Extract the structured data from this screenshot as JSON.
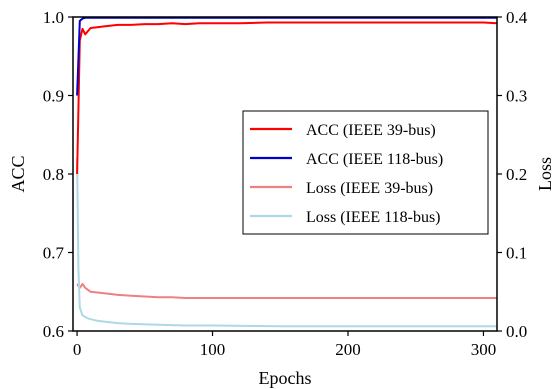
{
  "chart_data": {
    "type": "line",
    "xlabel": "Epochs",
    "ylabel_left": "ACC",
    "ylabel_right": "Loss",
    "xlim": [
      -3,
      310
    ],
    "ylim_left": [
      0.6,
      1.0
    ],
    "ylim_right": [
      0.0,
      0.4
    ],
    "xticks": [
      0,
      100,
      200,
      300
    ],
    "xtick_labels": [
      "0",
      "100",
      "200",
      "300"
    ],
    "yticks_left": [
      0.6,
      0.7,
      0.8,
      0.9,
      1.0
    ],
    "ytick_labels_left": [
      "0.6",
      "0.7",
      "0.8",
      "0.9",
      "1.0"
    ],
    "yticks_right": [
      0.0,
      0.1,
      0.2,
      0.3,
      0.4
    ],
    "ytick_labels_right": [
      "0.0",
      "0.1",
      "0.2",
      "0.3",
      "0.4"
    ],
    "grid": false,
    "legend_position": "center-right",
    "series": [
      {
        "name": "ACC (IEEE 39-bus)",
        "axis": "left",
        "color": "#ff0000",
        "x": [
          0,
          2,
          4,
          6,
          8,
          10,
          15,
          20,
          30,
          40,
          50,
          60,
          70,
          80,
          90,
          100,
          120,
          140,
          160,
          180,
          200,
          220,
          240,
          260,
          280,
          300,
          310
        ],
        "y": [
          0.8,
          0.97,
          0.985,
          0.978,
          0.982,
          0.986,
          0.987,
          0.988,
          0.99,
          0.99,
          0.991,
          0.991,
          0.992,
          0.991,
          0.992,
          0.992,
          0.992,
          0.993,
          0.993,
          0.993,
          0.993,
          0.993,
          0.993,
          0.993,
          0.993,
          0.993,
          0.992
        ]
      },
      {
        "name": "ACC (IEEE 118-bus)",
        "axis": "left",
        "color": "#0000cc",
        "x": [
          0,
          2,
          4,
          6,
          10,
          20,
          50,
          100,
          150,
          200,
          250,
          300,
          310
        ],
        "y": [
          0.9,
          0.995,
          0.998,
          0.999,
          0.999,
          0.999,
          0.999,
          0.999,
          0.999,
          0.999,
          0.999,
          0.999,
          0.999
        ]
      },
      {
        "name": "Loss (IEEE 39-bus)",
        "axis": "right",
        "color": "#f08080",
        "x": [
          0,
          2,
          4,
          6,
          10,
          20,
          30,
          40,
          50,
          60,
          70,
          80,
          90,
          100,
          120,
          140,
          160,
          180,
          200,
          220,
          240,
          260,
          280,
          300,
          310
        ],
        "y": [
          0.06,
          0.055,
          0.06,
          0.055,
          0.05,
          0.048,
          0.046,
          0.045,
          0.044,
          0.043,
          0.043,
          0.042,
          0.042,
          0.042,
          0.042,
          0.042,
          0.042,
          0.042,
          0.042,
          0.042,
          0.042,
          0.042,
          0.042,
          0.042,
          0.042
        ]
      },
      {
        "name": "Loss (IEEE 118-bus)",
        "axis": "right",
        "color": "#add8e6",
        "x": [
          0,
          1,
          2,
          3,
          4,
          6,
          8,
          10,
          15,
          20,
          30,
          40,
          60,
          80,
          100,
          150,
          200,
          250,
          300,
          310
        ],
        "y": [
          0.22,
          0.08,
          0.03,
          0.025,
          0.02,
          0.018,
          0.016,
          0.015,
          0.013,
          0.012,
          0.01,
          0.009,
          0.008,
          0.007,
          0.007,
          0.006,
          0.006,
          0.006,
          0.006,
          0.006
        ]
      }
    ]
  }
}
